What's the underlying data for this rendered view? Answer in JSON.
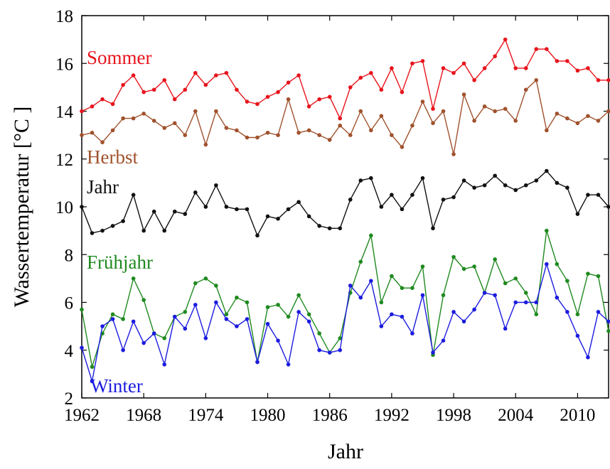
{
  "chart_data": {
    "type": "line",
    "xlabel": "Jahr",
    "ylabel": "Wassertemperatur [°C ]",
    "x": [
      1962,
      1963,
      1964,
      1965,
      1966,
      1967,
      1968,
      1969,
      1970,
      1971,
      1972,
      1973,
      1974,
      1975,
      1976,
      1977,
      1978,
      1979,
      1980,
      1981,
      1982,
      1983,
      1984,
      1985,
      1986,
      1987,
      1988,
      1989,
      1990,
      1991,
      1992,
      1993,
      1994,
      1995,
      1996,
      1997,
      1998,
      1999,
      2000,
      2001,
      2002,
      2003,
      2004,
      2005,
      2006,
      2007,
      2008,
      2009,
      2010,
      2011,
      2012,
      2013
    ],
    "xlim": [
      1962,
      2013
    ],
    "xticks": [
      1962,
      1968,
      1974,
      1980,
      1986,
      1992,
      1998,
      2004,
      2010
    ],
    "ylim": [
      2,
      18
    ],
    "yticks": [
      2,
      4,
      6,
      8,
      10,
      12,
      14,
      16,
      18
    ],
    "series": [
      {
        "name": "Sommer",
        "color": "#e8141c",
        "values": [
          14.0,
          14.2,
          14.5,
          14.3,
          15.1,
          15.5,
          14.8,
          14.9,
          15.3,
          14.5,
          14.9,
          15.6,
          15.1,
          15.5,
          15.6,
          14.9,
          14.4,
          14.3,
          14.6,
          14.8,
          15.2,
          15.5,
          14.2,
          14.5,
          14.6,
          13.7,
          15.0,
          15.4,
          15.6,
          14.9,
          15.8,
          14.8,
          16.0,
          16.1,
          14.1,
          15.8,
          15.6,
          16.0,
          15.3,
          15.8,
          16.3,
          17.0,
          15.8,
          15.8,
          16.6,
          16.6,
          16.1,
          16.1,
          15.7,
          15.8,
          15.3,
          15.3
        ]
      },
      {
        "name": "Herbst",
        "color": "#a0522d",
        "values": [
          13.0,
          13.1,
          12.7,
          13.2,
          13.7,
          13.7,
          13.9,
          13.6,
          13.3,
          13.5,
          13.0,
          14.0,
          12.6,
          14.0,
          13.3,
          13.2,
          12.9,
          12.9,
          13.1,
          13.0,
          14.5,
          13.1,
          13.2,
          13.0,
          12.8,
          13.4,
          13.0,
          14.0,
          13.2,
          13.8,
          13.0,
          12.5,
          13.4,
          14.4,
          13.5,
          14.0,
          12.2,
          14.7,
          13.6,
          14.2,
          14.0,
          14.1,
          13.6,
          14.9,
          15.3,
          13.2,
          13.9,
          13.7,
          13.5,
          13.8,
          13.6,
          14.0
        ]
      },
      {
        "name": "Jahr",
        "color": "#111111",
        "values": [
          10.0,
          8.9,
          9.0,
          9.2,
          9.4,
          10.5,
          9.0,
          9.8,
          9.0,
          9.8,
          9.7,
          10.6,
          10.0,
          10.9,
          10.0,
          9.9,
          9.9,
          8.8,
          9.6,
          9.5,
          9.9,
          10.2,
          9.6,
          9.2,
          9.1,
          9.1,
          10.3,
          11.1,
          11.2,
          10.0,
          10.5,
          9.9,
          10.5,
          11.2,
          9.1,
          10.3,
          10.4,
          11.1,
          10.8,
          10.9,
          11.3,
          10.9,
          10.7,
          10.9,
          11.1,
          11.5,
          11.0,
          10.8,
          9.7,
          10.5,
          10.5,
          10.0
        ]
      },
      {
        "name": "Frühjahr",
        "color": "#1f8a1f",
        "values": [
          5.7,
          3.3,
          4.7,
          5.5,
          5.3,
          7.0,
          6.1,
          4.7,
          4.5,
          5.4,
          5.6,
          6.8,
          7.0,
          6.7,
          5.5,
          6.2,
          6.0,
          3.5,
          5.8,
          5.9,
          5.4,
          6.3,
          5.5,
          4.7,
          3.9,
          4.5,
          6.4,
          7.7,
          8.8,
          6.0,
          7.1,
          6.6,
          6.6,
          7.5,
          3.8,
          6.3,
          7.9,
          7.4,
          7.5,
          6.4,
          7.8,
          6.8,
          7.0,
          6.4,
          5.5,
          9.0,
          7.6,
          6.9,
          5.5,
          7.2,
          7.1,
          4.8
        ]
      },
      {
        "name": "Winter",
        "color": "#1c1ce0",
        "values": [
          4.1,
          2.7,
          5.0,
          5.3,
          4.0,
          5.2,
          4.3,
          4.7,
          3.4,
          5.4,
          4.9,
          5.9,
          4.5,
          6.0,
          5.3,
          5.0,
          5.3,
          3.5,
          5.1,
          4.4,
          3.4,
          5.6,
          5.2,
          4.0,
          3.9,
          4.0,
          6.7,
          6.2,
          6.9,
          5.0,
          5.5,
          5.4,
          4.7,
          6.3,
          3.9,
          4.4,
          5.6,
          5.2,
          5.7,
          6.4,
          6.3,
          4.9,
          6.0,
          6.0,
          6.0,
          7.6,
          6.2,
          5.6,
          4.6,
          3.7,
          5.6,
          5.2
        ]
      }
    ]
  }
}
